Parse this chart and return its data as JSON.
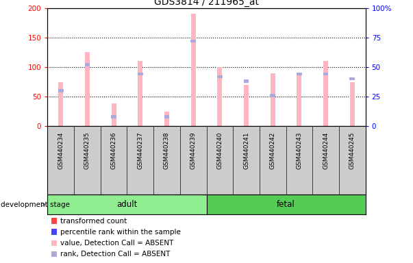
{
  "title": "GDS3814 / 211965_at",
  "samples": [
    "GSM440234",
    "GSM440235",
    "GSM440236",
    "GSM440237",
    "GSM440238",
    "GSM440239",
    "GSM440240",
    "GSM440241",
    "GSM440242",
    "GSM440243",
    "GSM440244",
    "GSM440245"
  ],
  "groups": [
    "adult",
    "adult",
    "adult",
    "adult",
    "adult",
    "adult",
    "fetal",
    "fetal",
    "fetal",
    "fetal",
    "fetal",
    "fetal"
  ],
  "value_absent": [
    75,
    125,
    38,
    110,
    25,
    190,
    100,
    70,
    90,
    90,
    110,
    75
  ],
  "rank_absent": [
    30,
    52,
    8,
    44,
    8,
    72,
    42,
    38,
    26,
    44,
    44,
    40
  ],
  "ylim_left": [
    0,
    200
  ],
  "ylim_right": [
    0,
    100
  ],
  "yticks_left": [
    0,
    50,
    100,
    150,
    200
  ],
  "yticks_right": [
    0,
    25,
    50,
    75,
    100
  ],
  "group_adult_color": "#90EE90",
  "group_fetal_color": "#55CC55",
  "bar_absent_color": "#FFB6C1",
  "rank_absent_color": "#AAAADD",
  "bar_present_color": "#FF4444",
  "rank_present_color": "#4444FF",
  "legend_items": [
    {
      "label": "transformed count",
      "color": "#FF4444"
    },
    {
      "label": "percentile rank within the sample",
      "color": "#4444FF"
    },
    {
      "label": "value, Detection Call = ABSENT",
      "color": "#FFB6C1"
    },
    {
      "label": "rank, Detection Call = ABSENT",
      "color": "#AAAADD"
    }
  ]
}
